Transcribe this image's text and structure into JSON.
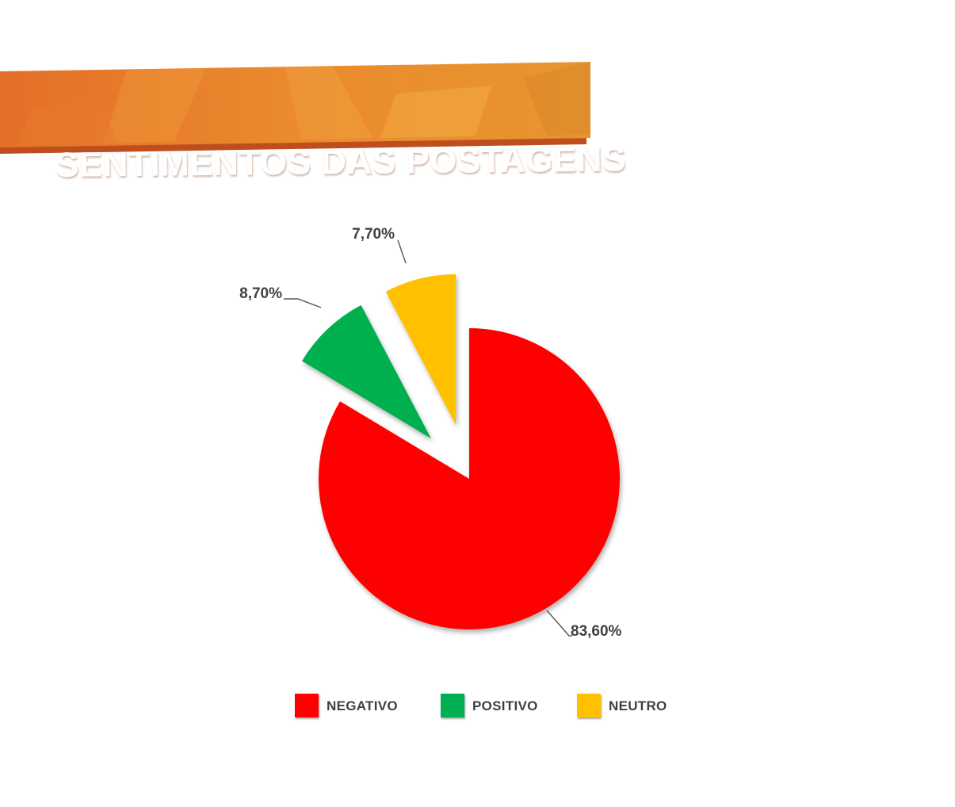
{
  "header": {
    "title": "SENTIMENTOS DAS POSTAGENS"
  },
  "colors": {
    "banner": "#e8802a",
    "banner_shadow": "#c1531f",
    "negativo": "#ff0000",
    "positivo": "#00b050",
    "neutro": "#ffc000",
    "label": "#404040"
  },
  "chart_data": {
    "type": "pie",
    "title": "SENTIMENTOS DAS POSTAGENS",
    "slices": [
      {
        "name": "NEGATIVO",
        "value": 83.6,
        "label": "83,60%",
        "color": "#ff0000",
        "exploded": false
      },
      {
        "name": "POSITIVO",
        "value": 8.7,
        "label": "8,70%",
        "color": "#00b050",
        "exploded": true
      },
      {
        "name": "NEUTRO",
        "value": 7.7,
        "label": "7,70%",
        "color": "#ffc000",
        "exploded": true
      }
    ],
    "legend_position": "bottom"
  },
  "legend": {
    "items": [
      {
        "label": "NEGATIVO",
        "color": "#ff0000"
      },
      {
        "label": "POSITIVO",
        "color": "#00b050"
      },
      {
        "label": "NEUTRO",
        "color": "#ffc000"
      }
    ]
  }
}
